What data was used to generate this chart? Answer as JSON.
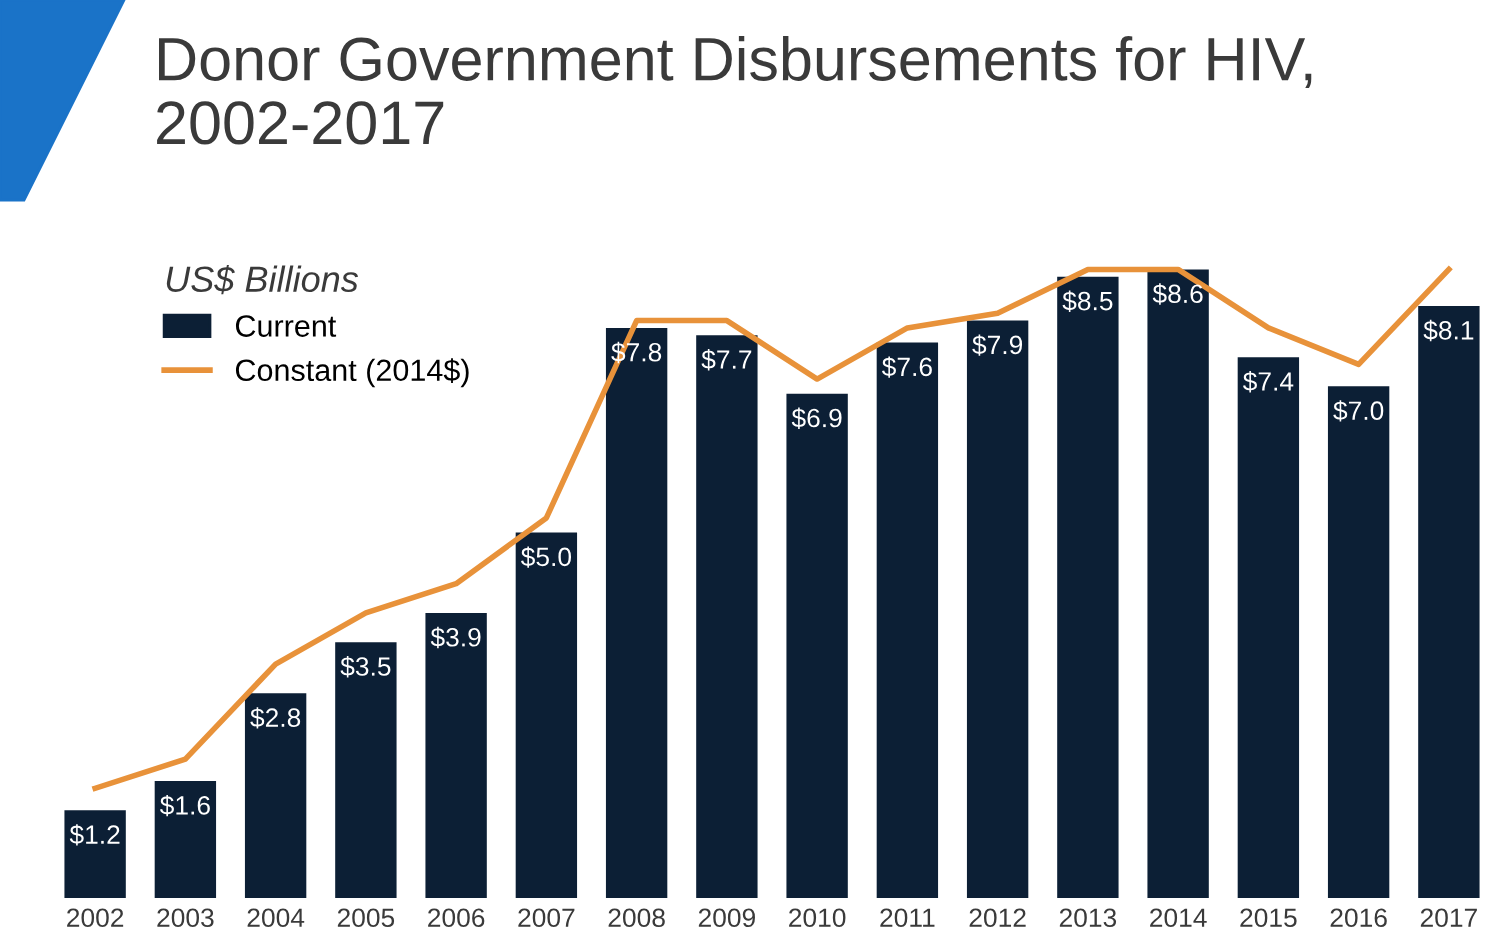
{
  "chart_data": {
    "type": "bar",
    "title": "Donor Government Disbursements for HIV,\n2002-2017",
    "legend_title": "US$ Billions",
    "categories": [
      "2002",
      "2003",
      "2004",
      "2005",
      "2006",
      "2007",
      "2008",
      "2009",
      "2010",
      "2011",
      "2012",
      "2013",
      "2014",
      "2015",
      "2016",
      "2017"
    ],
    "series": [
      {
        "name": "Current",
        "color": "#0c1f35",
        "values": [
          1.2,
          1.6,
          2.8,
          3.5,
          3.9,
          5.0,
          7.8,
          7.7,
          6.9,
          7.6,
          7.9,
          8.5,
          8.6,
          7.4,
          7.0,
          8.1
        ],
        "value_labels": [
          "$1.2",
          "$1.6",
          "$2.8",
          "$3.5",
          "$3.9",
          "$5.0",
          "$7.8",
          "$7.7",
          "$6.9",
          "$7.6",
          "$7.9",
          "$8.5",
          "$8.6",
          "$7.4",
          "$7.0",
          "$8.1"
        ]
      },
      {
        "name": "Constant (2014$)",
        "type": "line",
        "color": "#e8923a",
        "values": [
          1.5,
          1.9,
          3.2,
          3.9,
          4.3,
          5.2,
          7.9,
          7.9,
          7.1,
          7.8,
          8.0,
          8.6,
          8.6,
          7.8,
          7.3,
          8.6
        ]
      }
    ],
    "legend": "top left",
    "grid": false
  }
}
